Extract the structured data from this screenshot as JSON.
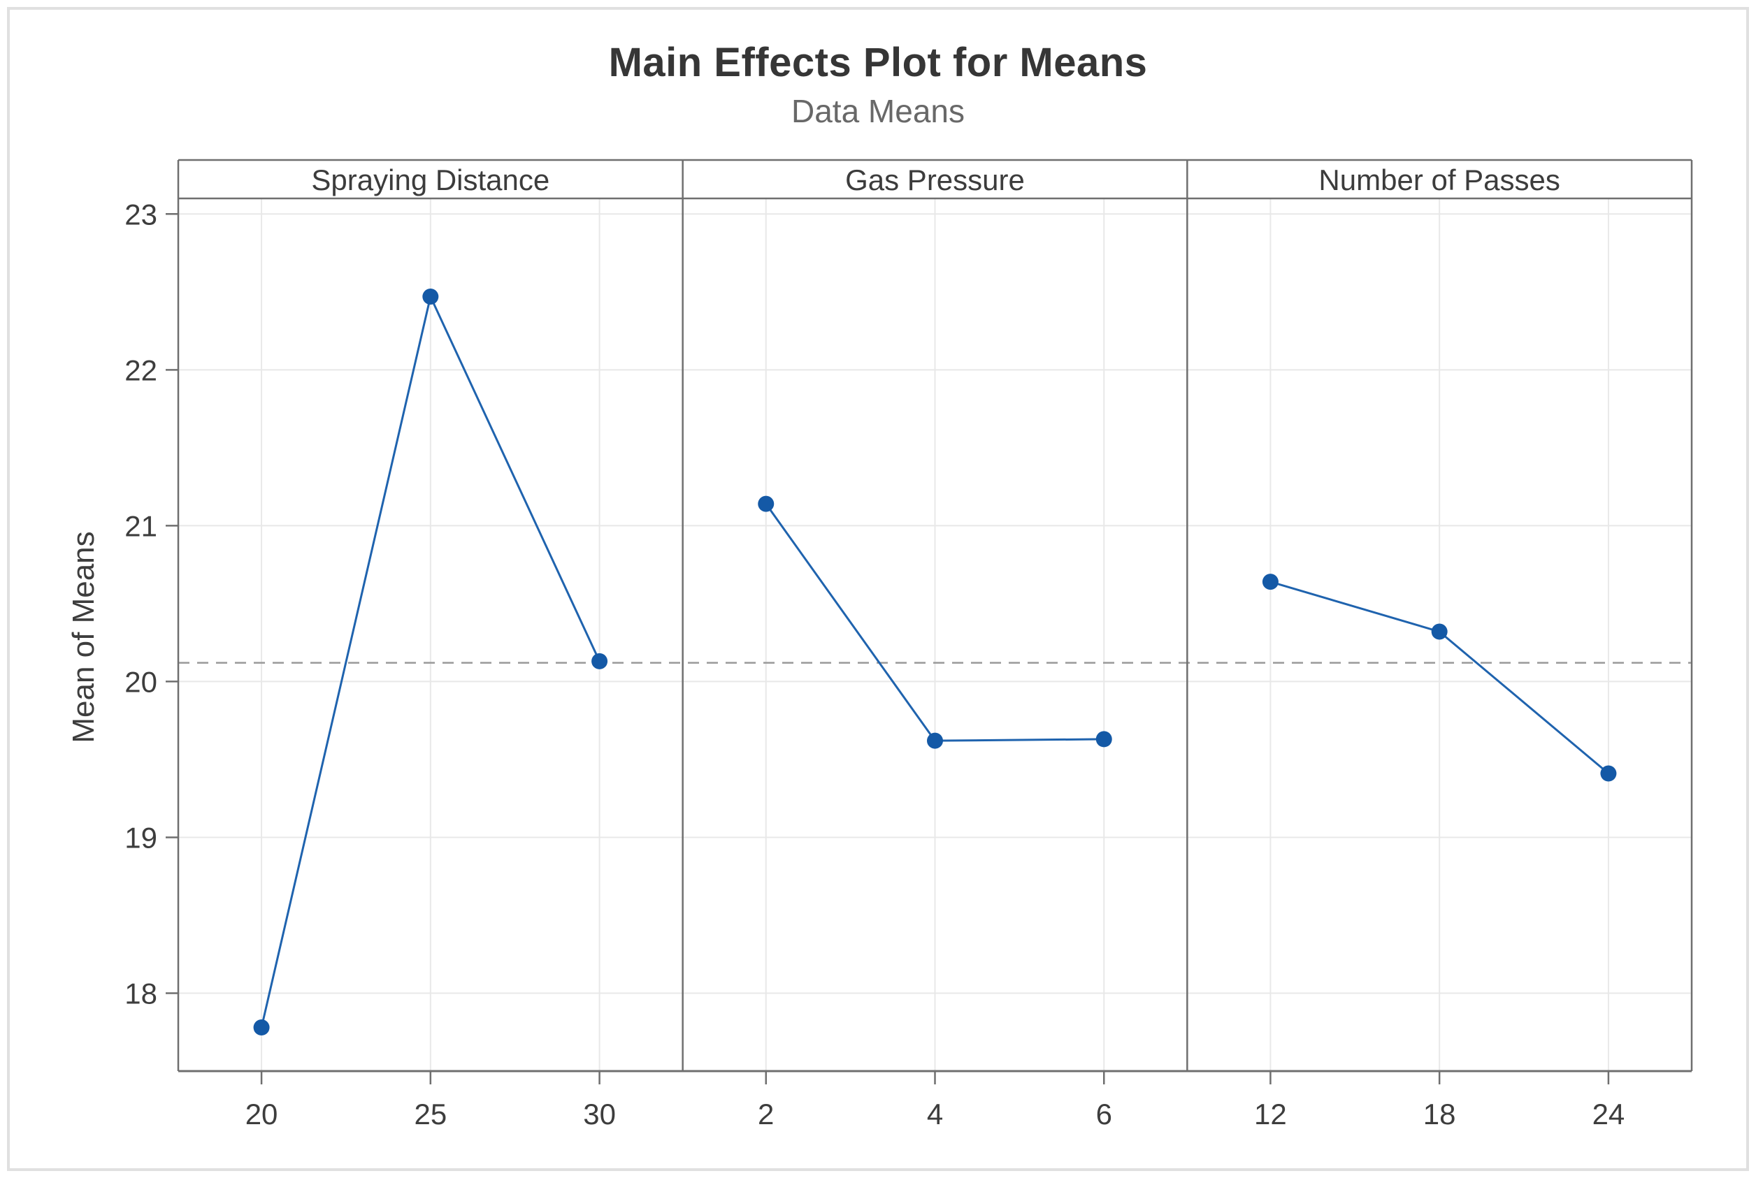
{
  "chart_data": {
    "type": "line",
    "title": "Main Effects Plot for Means",
    "subtitle": "Data Means",
    "ylabel": "Mean of Means",
    "ylim": [
      17.5,
      23.1
    ],
    "yticks": [
      18,
      19,
      20,
      21,
      22,
      23
    ],
    "grid": true,
    "legend": "none",
    "grand_mean": 20.12,
    "panels": [
      {
        "label": "Spraying Distance",
        "categories": [
          "20",
          "25",
          "30"
        ],
        "values": [
          17.78,
          22.47,
          20.13
        ]
      },
      {
        "label": "Gas Pressure",
        "categories": [
          "2",
          "4",
          "6"
        ],
        "values": [
          21.14,
          19.62,
          19.63
        ]
      },
      {
        "label": "Number of Passes",
        "categories": [
          "12",
          "18",
          "24"
        ],
        "values": [
          20.64,
          20.32,
          19.41
        ]
      }
    ],
    "colors": {
      "marker": "#1459a6",
      "line": "#1f63ae",
      "reference_line": "#999999",
      "gridline": "#e8e8e8",
      "border": "#6f6f6f",
      "tick_label": "#3d3d3d",
      "panel_label": "#3c3c3c"
    }
  }
}
